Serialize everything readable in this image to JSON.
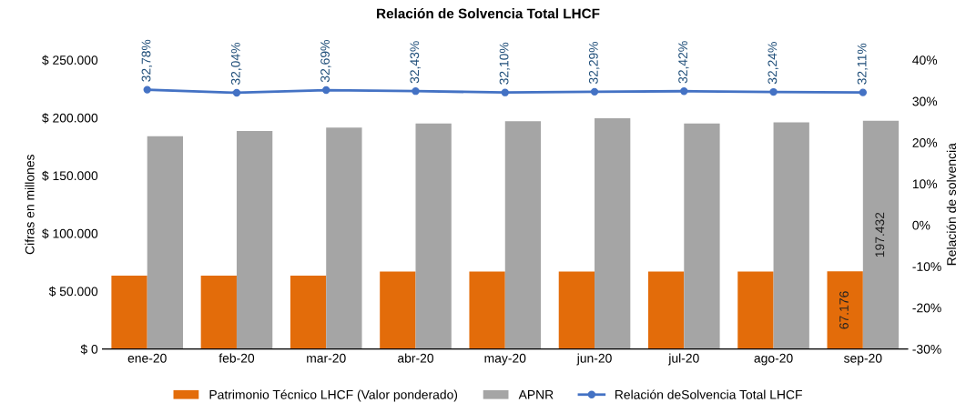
{
  "chart_data": {
    "type": "bar",
    "title": "Relación de Solvencia Total LHCF",
    "ylabel": "Cifras en millones",
    "y2label": "Relación de solvencia",
    "categories": [
      "ene-20",
      "feb-20",
      "mar-20",
      "abr-20",
      "may-20",
      "jun-20",
      "jul-20",
      "ago-20",
      "sep-20"
    ],
    "series": [
      {
        "name": "Patrimonio Técnico LHCF (Valor ponderado)",
        "color": "#e36c0a",
        "values": [
          63500,
          63500,
          63500,
          67000,
          67000,
          67000,
          67000,
          67000,
          67176
        ],
        "value_labels": [
          null,
          null,
          null,
          null,
          null,
          null,
          null,
          null,
          "67.176"
        ]
      },
      {
        "name": "APNR",
        "color": "#a5a5a5",
        "values": [
          184000,
          188500,
          191500,
          195000,
          197000,
          199500,
          195000,
          196000,
          197432
        ],
        "value_labels": [
          null,
          null,
          null,
          null,
          null,
          null,
          null,
          null,
          "197.432"
        ]
      },
      {
        "name": "Relación deSolvencia Total LHCF",
        "type": "line",
        "axis": "y2",
        "color": "#4472c4",
        "marker": "circle",
        "values": [
          32.78,
          32.04,
          32.69,
          32.43,
          32.1,
          32.29,
          32.42,
          32.24,
          32.11
        ],
        "value_labels": [
          "32,78%",
          "32,04%",
          "32,69%",
          "32,43%",
          "32,10%",
          "32,29%",
          "32,42%",
          "32,24%",
          "32,11%"
        ]
      }
    ],
    "ylim": [
      0,
      250000
    ],
    "yticks": [
      {
        "value": 0,
        "label": "$ 0"
      },
      {
        "value": 50000,
        "label": "$ 50.000"
      },
      {
        "value": 100000,
        "label": "$ 100.000"
      },
      {
        "value": 150000,
        "label": "$ 150.000"
      },
      {
        "value": 200000,
        "label": "$ 200.000"
      },
      {
        "value": 250000,
        "label": "$ 250.000"
      }
    ],
    "y2lim": [
      -30,
      40
    ],
    "y2ticks": [
      {
        "value": -30,
        "label": "-30%"
      },
      {
        "value": -20,
        "label": "-20%"
      },
      {
        "value": -10,
        "label": "-10%"
      },
      {
        "value": 0,
        "label": "0%"
      },
      {
        "value": 10,
        "label": "10%"
      },
      {
        "value": 20,
        "label": "20%"
      },
      {
        "value": 30,
        "label": "30%"
      },
      {
        "value": 40,
        "label": "40%"
      }
    ],
    "grid": false,
    "legend": "bottom"
  }
}
